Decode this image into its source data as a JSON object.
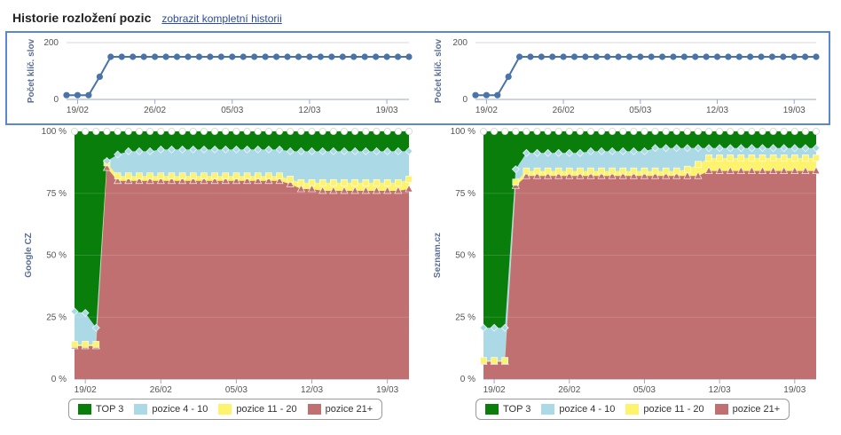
{
  "header": {
    "title": "Historie rozložení pozic",
    "link_label": "zobrazit kompletní historii"
  },
  "colors": {
    "top3": "#0a7e0a",
    "p4_10": "#acd9e6",
    "p11_20": "#fdf36c",
    "p21": "#c07070",
    "line": "#4a73a8",
    "frame": "#5b86d6"
  },
  "legend": {
    "google": [
      "TOP 3",
      "pozice 4 - 10",
      "pozice 11 - 20",
      "pozice 21+"
    ],
    "seznam": [
      "TOP 3",
      "pozice 4 - 10",
      "pozice 11 - 20",
      "pozice 21+"
    ]
  },
  "chart_data": [
    {
      "id": "google_count",
      "type": "line",
      "ylabel": "Počet klíč. slov",
      "yticks": [
        0,
        200
      ],
      "ylim": [
        0,
        200
      ],
      "x": [
        "2014-02-18",
        "2014-02-19",
        "2014-02-20",
        "2014-02-21",
        "2014-02-22",
        "2014-02-23",
        "2014-02-24",
        "2014-02-25",
        "2014-02-26",
        "2014-02-27",
        "2014-02-28",
        "2014-03-01",
        "2014-03-02",
        "2014-03-03",
        "2014-03-04",
        "2014-03-05",
        "2014-03-06",
        "2014-03-07",
        "2014-03-08",
        "2014-03-09",
        "2014-03-10",
        "2014-03-11",
        "2014-03-12",
        "2014-03-13",
        "2014-03-14",
        "2014-03-15",
        "2014-03-16",
        "2014-03-17",
        "2014-03-18",
        "2014-03-19",
        "2014-03-20",
        "2014-03-21"
      ],
      "xticks": [
        "19/02",
        "26/02",
        "05/03",
        "12/03",
        "19/03"
      ],
      "values": [
        15,
        15,
        15,
        80,
        150,
        150,
        150,
        150,
        150,
        150,
        150,
        150,
        150,
        150,
        150,
        150,
        150,
        150,
        150,
        150,
        150,
        150,
        150,
        150,
        150,
        150,
        150,
        150,
        150,
        150,
        150,
        150
      ]
    },
    {
      "id": "seznam_count",
      "type": "line",
      "ylabel": "Počet klíč. slov",
      "yticks": [
        0,
        200
      ],
      "ylim": [
        0,
        200
      ],
      "x": [
        "2014-02-18",
        "2014-02-19",
        "2014-02-20",
        "2014-02-21",
        "2014-02-22",
        "2014-02-23",
        "2014-02-24",
        "2014-02-25",
        "2014-02-26",
        "2014-02-27",
        "2014-02-28",
        "2014-03-01",
        "2014-03-02",
        "2014-03-03",
        "2014-03-04",
        "2014-03-05",
        "2014-03-06",
        "2014-03-07",
        "2014-03-08",
        "2014-03-09",
        "2014-03-10",
        "2014-03-11",
        "2014-03-12",
        "2014-03-13",
        "2014-03-14",
        "2014-03-15",
        "2014-03-16",
        "2014-03-17",
        "2014-03-18",
        "2014-03-19",
        "2014-03-20",
        "2014-03-21"
      ],
      "xticks": [
        "19/02",
        "26/02",
        "05/03",
        "12/03",
        "19/03"
      ],
      "values": [
        15,
        15,
        15,
        80,
        150,
        150,
        150,
        150,
        150,
        150,
        150,
        150,
        150,
        150,
        150,
        150,
        150,
        150,
        150,
        150,
        150,
        150,
        150,
        150,
        150,
        150,
        150,
        150,
        150,
        150,
        150,
        150
      ]
    },
    {
      "id": "google_dist",
      "type": "area",
      "ylabel": "Google CZ",
      "yticks": [
        "0 %",
        "25 %",
        "50 %",
        "75 %",
        "100 %"
      ],
      "ylim": [
        0,
        100
      ],
      "x": [
        "2014-02-18",
        "2014-02-19",
        "2014-02-20",
        "2014-02-21",
        "2014-02-22",
        "2014-02-23",
        "2014-02-24",
        "2014-02-25",
        "2014-02-26",
        "2014-02-27",
        "2014-02-28",
        "2014-03-01",
        "2014-03-02",
        "2014-03-03",
        "2014-03-04",
        "2014-03-05",
        "2014-03-06",
        "2014-03-07",
        "2014-03-08",
        "2014-03-09",
        "2014-03-10",
        "2014-03-11",
        "2014-03-12",
        "2014-03-13",
        "2014-03-14",
        "2014-03-15",
        "2014-03-16",
        "2014-03-17",
        "2014-03-18",
        "2014-03-19",
        "2014-03-20",
        "2014-03-21"
      ],
      "xticks": [
        "19/02",
        "26/02",
        "05/03",
        "12/03",
        "19/03"
      ],
      "series": [
        {
          "name": "pozice 21+",
          "values": [
            13.3,
            13.3,
            13.3,
            85.3,
            80,
            80,
            80,
            80,
            80,
            80,
            80,
            80,
            80,
            80,
            80,
            80,
            80,
            80,
            80,
            80,
            78.7,
            76.7,
            76.7,
            76,
            76,
            76,
            76,
            76,
            76,
            76,
            76,
            76.7
          ]
        },
        {
          "name": "pozice 11 - 20",
          "values": [
            14,
            14,
            14,
            87.3,
            82,
            82,
            82,
            82,
            82,
            82,
            82,
            82,
            82,
            82,
            82,
            82,
            82,
            82,
            82,
            82,
            80.7,
            79.3,
            79.3,
            79.3,
            79.3,
            79.3,
            79.3,
            79.3,
            79.3,
            79.3,
            79.3,
            80.7
          ]
        },
        {
          "name": "pozice 4 - 10",
          "values": [
            27.3,
            26.7,
            20.7,
            88,
            90.7,
            92,
            92,
            92,
            92.7,
            92.7,
            92.7,
            92.7,
            92.7,
            92.7,
            92.7,
            92.7,
            92.7,
            92.7,
            92.7,
            92.7,
            92,
            92,
            92,
            92,
            92,
            92,
            92,
            92,
            92,
            92,
            92,
            92
          ]
        },
        {
          "name": "TOP 3",
          "values": [
            100,
            100,
            100,
            100,
            100,
            100,
            100,
            100,
            100,
            100,
            100,
            100,
            100,
            100,
            100,
            100,
            100,
            100,
            100,
            100,
            100,
            100,
            100,
            100,
            100,
            100,
            100,
            100,
            100,
            100,
            100,
            100
          ]
        }
      ]
    },
    {
      "id": "seznam_dist",
      "type": "area",
      "ylabel": "Seznam.cz",
      "yticks": [
        "0 %",
        "25 %",
        "50 %",
        "75 %",
        "100 %"
      ],
      "ylim": [
        0,
        100
      ],
      "x": [
        "2014-02-18",
        "2014-02-19",
        "2014-02-20",
        "2014-02-21",
        "2014-02-22",
        "2014-02-23",
        "2014-02-24",
        "2014-02-25",
        "2014-02-26",
        "2014-02-27",
        "2014-02-28",
        "2014-03-01",
        "2014-03-02",
        "2014-03-03",
        "2014-03-04",
        "2014-03-05",
        "2014-03-06",
        "2014-03-07",
        "2014-03-08",
        "2014-03-09",
        "2014-03-10",
        "2014-03-11",
        "2014-03-12",
        "2014-03-13",
        "2014-03-14",
        "2014-03-15",
        "2014-03-16",
        "2014-03-17",
        "2014-03-18",
        "2014-03-19",
        "2014-03-20",
        "2014-03-21"
      ],
      "xticks": [
        "19/02",
        "26/02",
        "05/03",
        "12/03",
        "19/03"
      ],
      "series": [
        {
          "name": "pozice 21+",
          "values": [
            7,
            7,
            7,
            78,
            82,
            82,
            82,
            82,
            82,
            82,
            82,
            82,
            82,
            82,
            82,
            82,
            82,
            82,
            82,
            82,
            82,
            84,
            84,
            84,
            84,
            84,
            84,
            84,
            84,
            84,
            84,
            84
          ]
        },
        {
          "name": "pozice 11 - 20",
          "values": [
            7.5,
            7.5,
            7.5,
            79.5,
            84,
            84,
            84,
            84,
            84,
            84,
            84,
            84,
            84,
            84,
            84,
            84,
            84,
            84,
            84,
            84.7,
            86.7,
            89.3,
            89.3,
            89.3,
            89.3,
            89.3,
            89.3,
            89.3,
            89.3,
            89.3,
            89.3,
            89.3
          ]
        },
        {
          "name": "pozice 4 - 10",
          "values": [
            20.7,
            20.7,
            20.7,
            84.7,
            91.3,
            91.3,
            91.3,
            91.3,
            91.3,
            91.3,
            92,
            92,
            92,
            92,
            92,
            92,
            93.3,
            93.3,
            93.3,
            93.3,
            93.3,
            93.3,
            93.3,
            93.3,
            93.3,
            93.3,
            93.3,
            93.3,
            93.3,
            93.3,
            93.3,
            93.3
          ]
        },
        {
          "name": "TOP 3",
          "values": [
            100,
            100,
            100,
            100,
            100,
            100,
            100,
            100,
            100,
            100,
            100,
            100,
            100,
            100,
            100,
            100,
            100,
            100,
            100,
            100,
            100,
            100,
            100,
            100,
            100,
            100,
            100,
            100,
            100,
            100,
            100,
            100
          ]
        }
      ]
    }
  ]
}
